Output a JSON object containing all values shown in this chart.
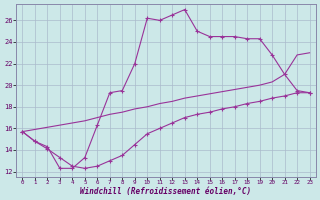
{
  "xlabel": "Windchill (Refroidissement éolien,°C)",
  "background_color": "#cce8e8",
  "grid_color": "#aabbcc",
  "line_color": "#993399",
  "xlim": [
    -0.5,
    23.5
  ],
  "ylim": [
    11.5,
    27.5
  ],
  "xticks": [
    0,
    1,
    2,
    3,
    4,
    5,
    6,
    7,
    8,
    9,
    10,
    11,
    12,
    13,
    14,
    15,
    16,
    17,
    18,
    19,
    20,
    21,
    22,
    23
  ],
  "yticks": [
    12,
    14,
    16,
    18,
    20,
    22,
    24,
    26
  ],
  "series1_x": [
    0,
    1,
    2,
    3,
    4,
    5,
    6,
    7,
    8,
    9,
    10,
    11,
    12,
    13,
    14,
    15,
    16,
    17,
    18,
    19,
    20,
    21,
    22,
    23
  ],
  "series1_y": [
    15.7,
    14.8,
    14.3,
    12.3,
    12.3,
    13.3,
    16.3,
    19.3,
    19.5,
    22.0,
    26.2,
    26.0,
    26.5,
    27.0,
    25.0,
    24.5,
    24.5,
    24.5,
    24.3,
    24.3,
    22.8,
    21.0,
    19.5,
    19.3
  ],
  "series2_x": [
    0,
    1,
    2,
    3,
    4,
    5,
    6,
    7,
    8,
    9,
    10,
    11,
    12,
    13,
    14,
    15,
    16,
    17,
    18,
    19,
    20,
    21,
    22,
    23
  ],
  "series2_y": [
    15.7,
    14.8,
    14.1,
    13.3,
    12.5,
    12.3,
    12.5,
    13.0,
    13.5,
    14.5,
    15.5,
    16.0,
    16.5,
    17.0,
    17.3,
    17.5,
    17.8,
    18.0,
    18.3,
    18.5,
    18.8,
    19.0,
    19.3,
    19.3
  ],
  "series3_x": [
    0,
    1,
    2,
    3,
    4,
    5,
    6,
    7,
    8,
    9,
    10,
    11,
    12,
    13,
    14,
    15,
    16,
    17,
    18,
    19,
    20,
    21,
    22,
    23
  ],
  "series3_y": [
    15.7,
    15.9,
    16.1,
    16.3,
    16.5,
    16.7,
    17.0,
    17.3,
    17.5,
    17.8,
    18.0,
    18.3,
    18.5,
    18.8,
    19.0,
    19.2,
    19.4,
    19.6,
    19.8,
    20.0,
    20.3,
    21.0,
    22.8,
    23.0
  ]
}
